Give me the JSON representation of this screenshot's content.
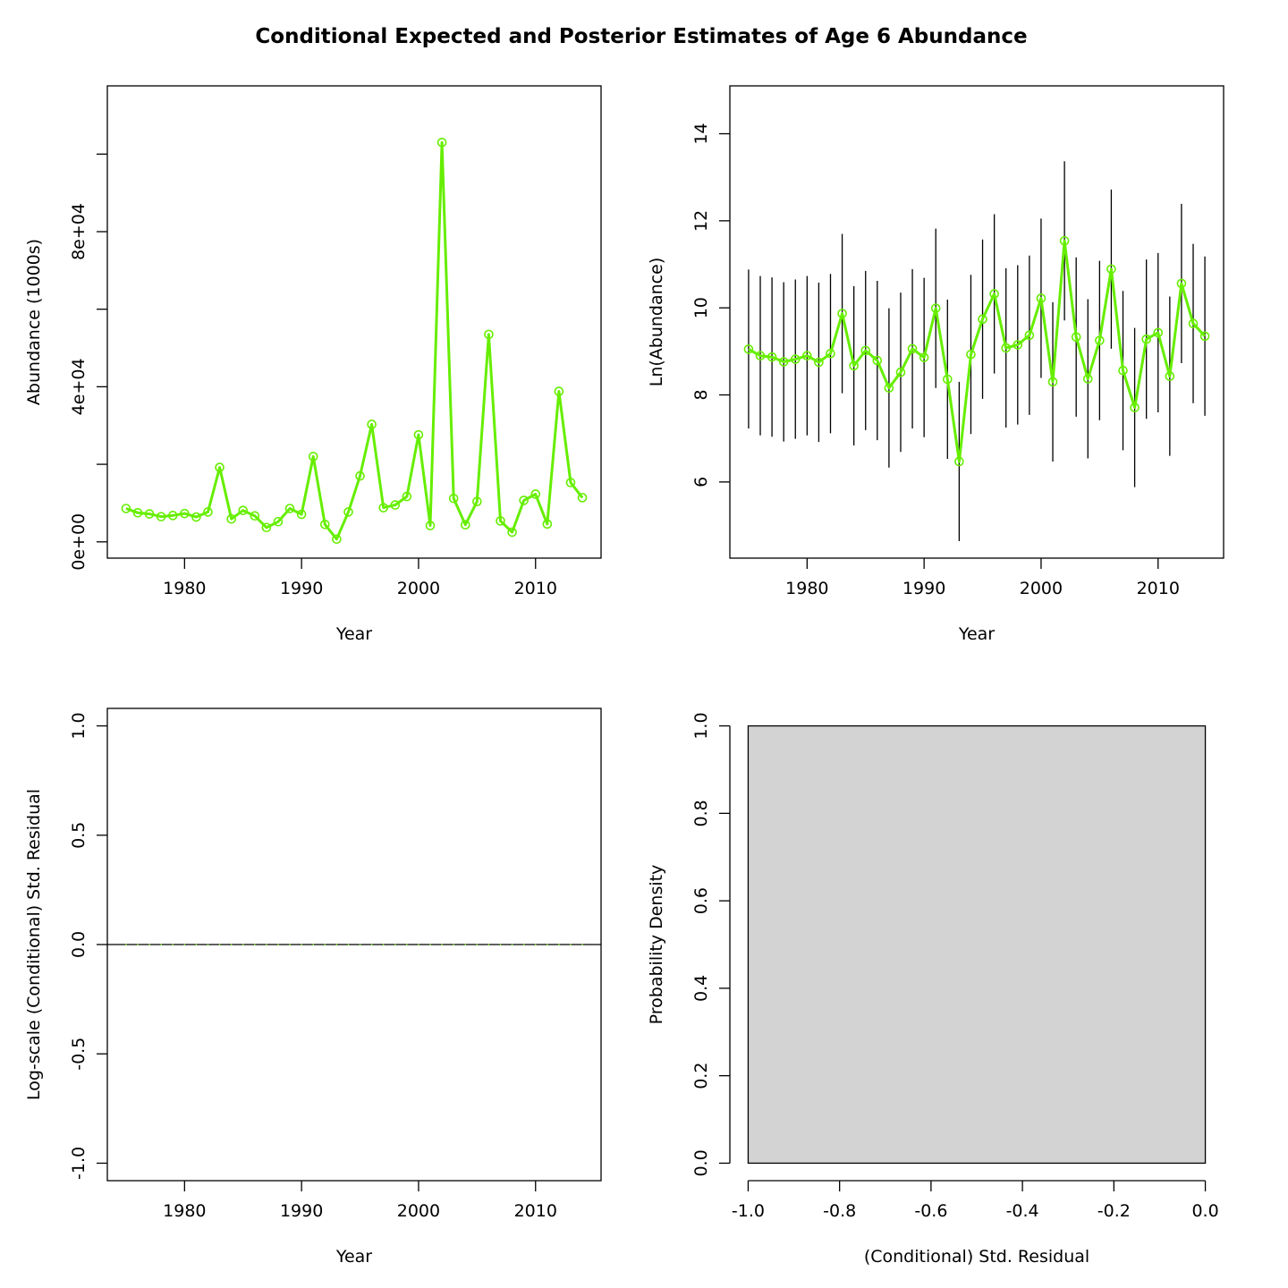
{
  "title": "Conditional Expected and Posterior Estimates of Age 6 Abundance",
  "colors": {
    "series": "#66EE00",
    "hist_fill": "#D3D3D3",
    "axis": "#000000",
    "error_bar": "#000000"
  },
  "chart_data": [
    {
      "type": "line",
      "xlabel": "Year",
      "ylabel": "Abundance (1000s)",
      "xlim": [
        1973.4,
        2015.6
      ],
      "ylim": [
        -4200,
        117600
      ],
      "xticks": [
        1980,
        1990,
        2000,
        2010
      ],
      "xtick_labels": [
        "1980",
        "1990",
        "2000",
        "2010"
      ],
      "yticks": [
        0,
        20000,
        40000,
        60000,
        80000,
        100000
      ],
      "ytick_labels": [
        "0e+00",
        "",
        "4e+04",
        "",
        "8e+04",
        ""
      ],
      "x": [
        1975,
        1976,
        1977,
        1978,
        1979,
        1980,
        1981,
        1982,
        1983,
        1984,
        1985,
        1986,
        1987,
        1988,
        1989,
        1990,
        1991,
        1992,
        1993,
        1994,
        1995,
        1996,
        1997,
        1998,
        1999,
        2000,
        2001,
        2002,
        2003,
        2004,
        2005,
        2006,
        2007,
        2008,
        2009,
        2010,
        2011,
        2012,
        2013,
        2014
      ],
      "y": [
        8600,
        7500,
        7200,
        6500,
        6800,
        7300,
        6400,
        7700,
        19200,
        5900,
        8100,
        6700,
        3700,
        5200,
        8600,
        7100,
        22000,
        4500,
        700,
        7700,
        17000,
        30300,
        8800,
        9500,
        11700,
        27600,
        4200,
        103000,
        11200,
        4400,
        10400,
        53500,
        5400,
        2500,
        10700,
        12300,
        4600,
        38800,
        15300,
        11400
      ]
    },
    {
      "type": "line",
      "xlabel": "Year",
      "ylabel": "Ln(Abundance)",
      "xlim": [
        1973.4,
        2015.6
      ],
      "ylim": [
        4.25,
        15.1
      ],
      "xticks": [
        1980,
        1990,
        2000,
        2010
      ],
      "xtick_labels": [
        "1980",
        "1990",
        "2000",
        "2010"
      ],
      "yticks": [
        6,
        8,
        10,
        12,
        14
      ],
      "ytick_labels": [
        "6",
        "8",
        "10",
        "12",
        "14"
      ],
      "x": [
        1975,
        1976,
        1977,
        1978,
        1979,
        1980,
        1981,
        1982,
        1983,
        1984,
        1985,
        1986,
        1987,
        1988,
        1989,
        1990,
        1991,
        1992,
        1993,
        1994,
        1995,
        1996,
        1997,
        1998,
        1999,
        2000,
        2001,
        2002,
        2003,
        2004,
        2005,
        2006,
        2007,
        2008,
        2009,
        2010,
        2011,
        2012,
        2013,
        2014
      ],
      "y": [
        9.05,
        8.9,
        8.87,
        8.76,
        8.82,
        8.9,
        8.75,
        8.95,
        9.87,
        8.67,
        9.02,
        8.79,
        8.16,
        8.52,
        9.06,
        8.86,
        9.99,
        8.36,
        6.47,
        8.93,
        9.74,
        10.32,
        9.08,
        9.15,
        9.37,
        10.22,
        8.3,
        11.54,
        9.33,
        8.37,
        9.25,
        10.89,
        8.56,
        7.71,
        9.28,
        9.43,
        8.43,
        10.56,
        9.64,
        9.35
      ],
      "lower": [
        7.23,
        7.07,
        7.04,
        6.93,
        6.99,
        7.07,
        6.92,
        7.12,
        8.04,
        6.84,
        7.19,
        6.96,
        6.33,
        6.69,
        7.23,
        7.03,
        8.16,
        6.53,
        4.64,
        7.1,
        7.91,
        8.49,
        7.25,
        7.32,
        7.54,
        8.39,
        6.47,
        9.71,
        7.5,
        6.54,
        7.42,
        9.06,
        6.73,
        5.88,
        7.45,
        7.6,
        6.6,
        8.73,
        7.81,
        7.52
      ],
      "upper": [
        10.88,
        10.73,
        10.7,
        10.59,
        10.65,
        10.73,
        10.58,
        10.78,
        11.7,
        10.5,
        10.85,
        10.62,
        9.99,
        10.35,
        10.89,
        10.69,
        11.82,
        10.19,
        8.3,
        10.76,
        11.57,
        12.15,
        10.91,
        10.98,
        11.2,
        12.05,
        10.13,
        13.37,
        11.16,
        10.2,
        11.08,
        12.72,
        10.39,
        9.54,
        11.11,
        11.26,
        10.26,
        12.39,
        11.47,
        11.18
      ]
    },
    {
      "type": "line",
      "xlabel": "Year",
      "ylabel": "Log-scale (Conditional) Std. Residual",
      "xlim": [
        1973.4,
        2015.6
      ],
      "ylim": [
        -1.08,
        1.08
      ],
      "xticks": [
        1980,
        1990,
        2000,
        2010
      ],
      "xtick_labels": [
        "1980",
        "1990",
        "2000",
        "2010"
      ],
      "yticks": [
        -1.0,
        -0.5,
        0.0,
        0.5,
        1.0
      ],
      "ytick_labels": [
        "-1.0",
        "-0.5",
        "0.0",
        "0.5",
        "1.0"
      ],
      "reference_line": 0,
      "x": [
        1975,
        1976,
        1977,
        1978,
        1979,
        1980,
        1981,
        1982,
        1983,
        1984,
        1985,
        1986,
        1987,
        1988,
        1989,
        1990,
        1991,
        1992,
        1993,
        1994,
        1995,
        1996,
        1997,
        1998,
        1999,
        2000,
        2001,
        2002,
        2003,
        2004,
        2005,
        2006,
        2007,
        2008,
        2009,
        2010,
        2011,
        2012,
        2013,
        2014
      ],
      "y": [
        0,
        0,
        0,
        0,
        0,
        0,
        0,
        0,
        0,
        0,
        0,
        0,
        0,
        0,
        0,
        0,
        0,
        0,
        0,
        0,
        0,
        0,
        0,
        0,
        0,
        0,
        0,
        0,
        0,
        0,
        0,
        0,
        0,
        0,
        0,
        0,
        0,
        0,
        0,
        0
      ]
    },
    {
      "type": "bar",
      "subtype": "histogram",
      "xlabel": "(Conditional) Std. Residual",
      "ylabel": "Probability Density",
      "xlim": [
        -1.04,
        0.04
      ],
      "ylim": [
        -0.04,
        1.04
      ],
      "xticks": [
        -1.0,
        -0.8,
        -0.6,
        -0.4,
        -0.2,
        0.0
      ],
      "xtick_labels": [
        "-1.0",
        "-0.8",
        "-0.6",
        "-0.4",
        "-0.2",
        "0.0"
      ],
      "yticks": [
        0.0,
        0.2,
        0.4,
        0.6,
        0.8,
        1.0
      ],
      "ytick_labels": [
        "0.0",
        "0.2",
        "0.4",
        "0.6",
        "0.8",
        "1.0"
      ],
      "bins": [
        {
          "x0": -1.0,
          "x1": 0.0,
          "density": 1.0
        }
      ]
    }
  ]
}
